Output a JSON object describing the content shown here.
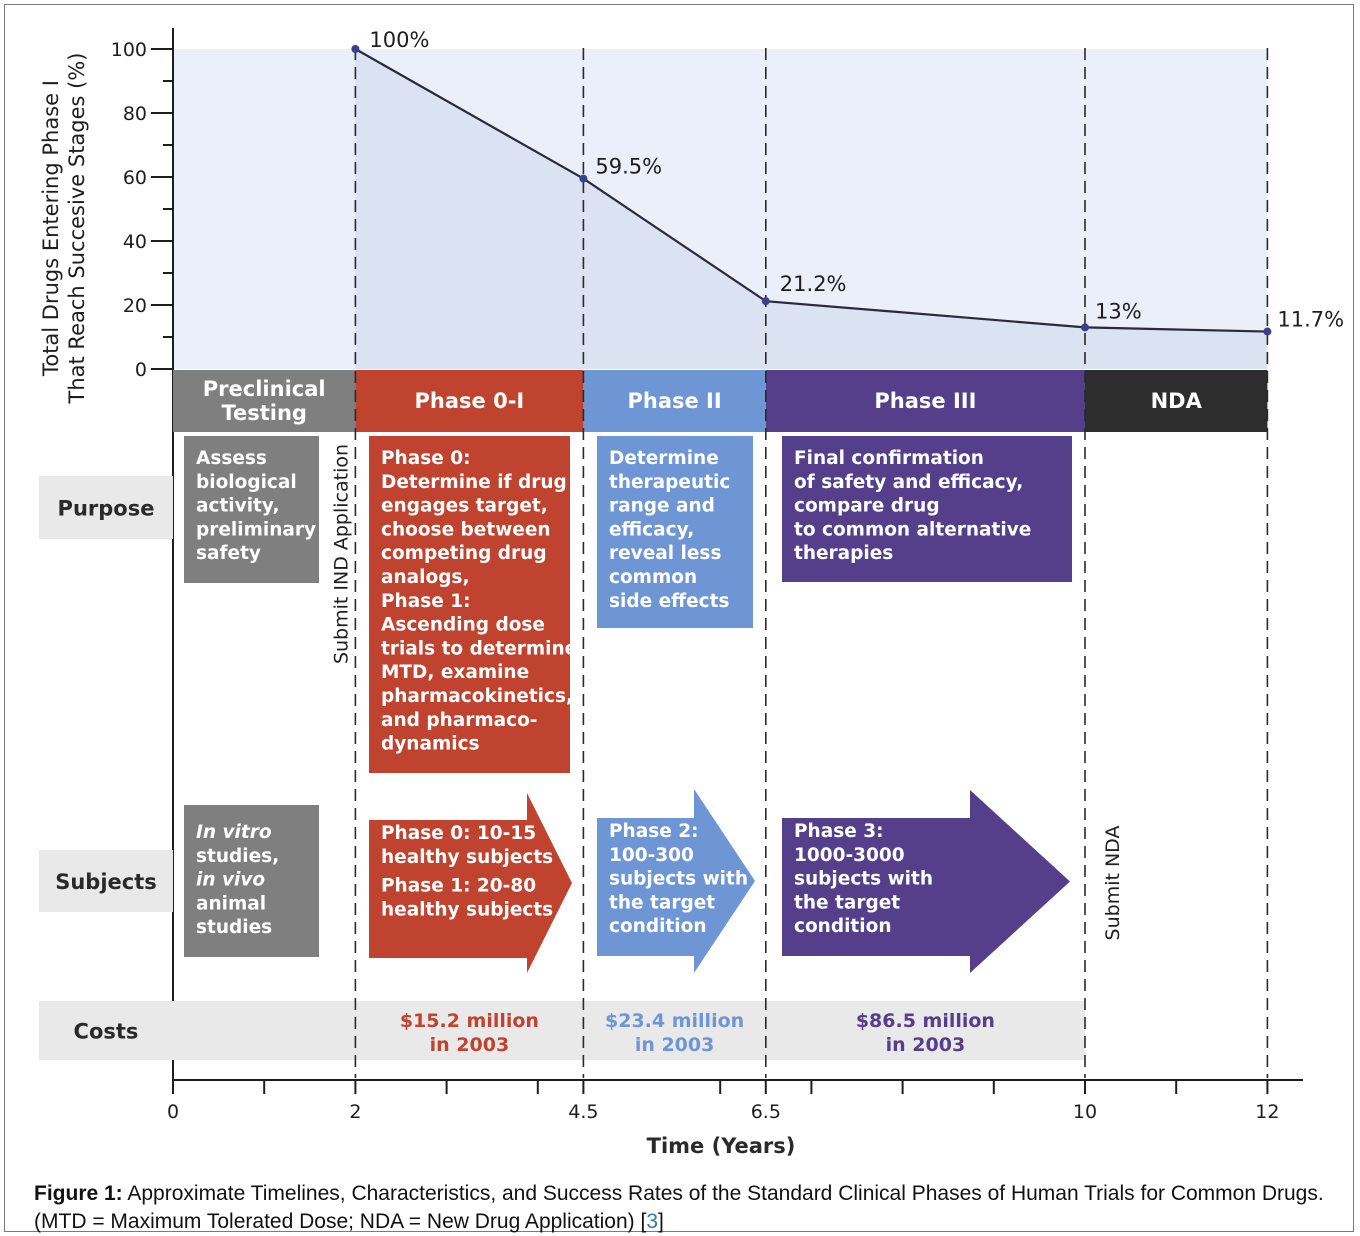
{
  "chart_data": {
    "type": "area",
    "ylabel": [
      "Total Drugs Entering Phase I",
      "That Reach Succesive Stages (%)"
    ],
    "xlabel": "Time (Years)",
    "ylim": [
      0,
      100
    ],
    "xlim": [
      0,
      12
    ],
    "yticks": [
      "0",
      "20",
      "40",
      "60",
      "80",
      "100"
    ],
    "xticks": [
      {
        "value": 0,
        "label": "0"
      },
      {
        "value": 2,
        "label": "2"
      },
      {
        "value": 4.5,
        "label": "4.5"
      },
      {
        "value": 6.5,
        "label": "6.5"
      },
      {
        "value": 10,
        "label": "10"
      },
      {
        "value": 12,
        "label": "12"
      }
    ],
    "minor_xticks": [
      1,
      3,
      4,
      6,
      7,
      8,
      9,
      11
    ],
    "points": [
      {
        "x": 2,
        "y": 100,
        "label": "100%"
      },
      {
        "x": 4.5,
        "y": 59.5,
        "label": "59.5%"
      },
      {
        "x": 6.5,
        "y": 21.2,
        "label": "21.2%"
      },
      {
        "x": 10,
        "y": 13,
        "label": "13%"
      },
      {
        "x": 12,
        "y": 11.7,
        "label": "11.7%"
      }
    ],
    "phases": [
      {
        "name": [
          "Preclinical",
          "Testing"
        ],
        "start": 0,
        "end": 2,
        "color": "#7f7f7f"
      },
      {
        "name": [
          "Phase 0-I"
        ],
        "start": 2,
        "end": 4.5,
        "color": "#c0432f"
      },
      {
        "name": [
          "Phase II"
        ],
        "start": 4.5,
        "end": 6.5,
        "color": "#6f96d4"
      },
      {
        "name": [
          "Phase III"
        ],
        "start": 6.5,
        "end": 10,
        "color": "#553f8a"
      },
      {
        "name": [
          "NDA"
        ],
        "start": 10,
        "end": 12,
        "color": "#2d2d2d"
      }
    ],
    "row_labels": {
      "purpose": "Purpose",
      "subjects": "Subjects",
      "costs": "Costs"
    },
    "purpose": [
      {
        "lines": [
          "Assess",
          "biological",
          "activity,",
          "preliminary",
          "safety"
        ],
        "color": "#7f7f7f"
      },
      {
        "lines": [
          "Phase 0:",
          "Determine if drug",
          "engages target,",
          "choose between",
          "competing drug",
          "analogs,",
          "Phase 1:",
          "Ascending dose",
          "trials to determine",
          "MTD, examine",
          "pharmacokinetics,",
          "and pharmaco-",
          "dynamics"
        ],
        "color": "#c0432f"
      },
      {
        "lines": [
          "Determine",
          "therapeutic",
          "range and",
          "efficacy,",
          "reveal less",
          "common",
          "side effects"
        ],
        "color": "#6f96d4"
      },
      {
        "lines": [
          "Final confirmation",
          "of safety and efficacy,",
          "compare drug",
          "to common alternative",
          "therapies"
        ],
        "color": "#553f8a"
      }
    ],
    "subjects": [
      {
        "lines": [
          "In vitro",
          "studies,",
          "in vivo",
          "animal",
          "studies"
        ],
        "italic": [
          true,
          false,
          true,
          false,
          false
        ],
        "color": "#7f7f7f"
      },
      {
        "lines": [
          "Phase 0: 10-15",
          "healthy subjects",
          "Phase 1: 20-80",
          "healthy subjects"
        ],
        "color": "#c0432f"
      },
      {
        "lines": [
          "Phase 2:",
          "100-300",
          "subjects with",
          "the target",
          "condition"
        ],
        "color": "#6f96d4"
      },
      {
        "lines": [
          "Phase 3:",
          "1000-3000",
          "subjects with",
          "the target",
          "condition"
        ],
        "color": "#553f8a"
      }
    ],
    "costs": [
      {
        "lines": [
          "$15.2 million",
          "in 2003"
        ],
        "color": "#c0432f"
      },
      {
        "lines": [
          "$23.4 million",
          "in 2003"
        ],
        "color": "#6f96d4"
      },
      {
        "lines": [
          "$86.5 million",
          "in 2003"
        ],
        "color": "#553f8a"
      }
    ],
    "milestones": [
      "Submit IND Application",
      "Submit NDA"
    ]
  },
  "caption": {
    "label": "Figure 1:",
    "text": " Approximate Timelines, Characteristics, and Success Rates of the Standard Clinical Phases of Human Trials for Common Drugs. (MTD = Maximum Tolerated Dose; NDA = New Drug Application) [",
    "ref": "3",
    "end": "]"
  }
}
